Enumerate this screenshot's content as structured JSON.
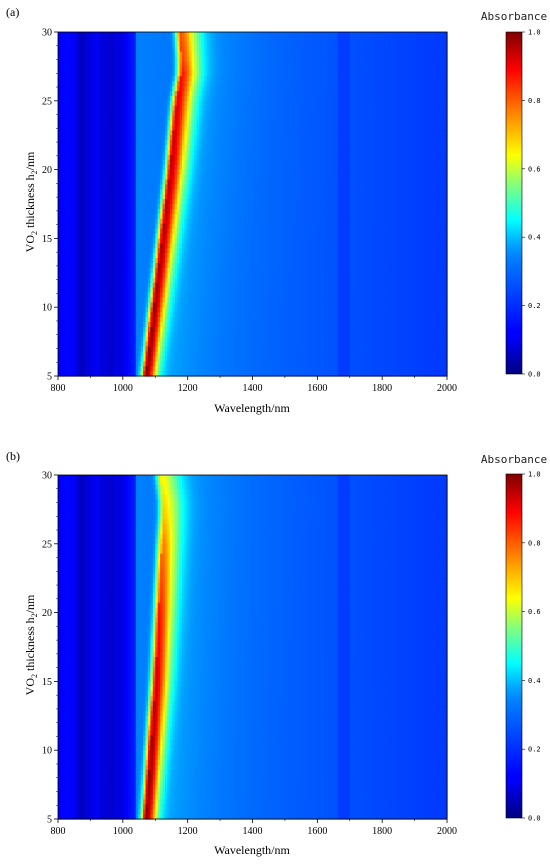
{
  "panels": [
    {
      "label": "(a)"
    },
    {
      "label": "(b)"
    }
  ],
  "colorbar": {
    "title": "Absorbance",
    "ticks": [
      "0.0",
      "0.2",
      "0.4",
      "0.6",
      "0.8",
      "1.0"
    ]
  },
  "chart_data": [
    {
      "type": "heatmap",
      "panel": "(a)",
      "xlabel": "Wavelength/nm",
      "ylabel": "VO2 thickness h2/nm",
      "xlim": [
        800,
        2000
      ],
      "ylim": [
        5,
        30
      ],
      "xticks": [
        800,
        1000,
        1200,
        1400,
        1600,
        1800,
        2000
      ],
      "yticks": [
        5,
        10,
        15,
        20,
        25,
        30
      ],
      "colorscale": "jet",
      "zlim": [
        0,
        1
      ],
      "peak_ridge": {
        "thickness": [
          5,
          10,
          15,
          20,
          25,
          27,
          28,
          30
        ],
        "wavelength": [
          1070,
          1095,
          1120,
          1145,
          1165,
          1180,
          1180,
          1175
        ],
        "peak_absorbance": [
          0.92,
          0.9,
          0.88,
          0.86,
          0.83,
          0.78,
          0.74,
          0.72
        ]
      }
    },
    {
      "type": "heatmap",
      "panel": "(b)",
      "xlabel": "Wavelength/nm",
      "ylabel": "VO2 thickness h2/nm",
      "xlim": [
        800,
        2000
      ],
      "ylim": [
        5,
        30
      ],
      "xticks": [
        800,
        1000,
        1200,
        1400,
        1600,
        1800,
        2000
      ],
      "yticks": [
        5,
        10,
        15,
        20,
        25,
        30
      ],
      "colorscale": "jet",
      "zlim": [
        0,
        1
      ],
      "peak_ridge": {
        "thickness": [
          5,
          10,
          15,
          20,
          25,
          27,
          28,
          30
        ],
        "wavelength": [
          1070,
          1085,
          1100,
          1110,
          1120,
          1125,
          1125,
          1115
        ],
        "peak_absorbance": [
          0.92,
          0.9,
          0.85,
          0.78,
          0.68,
          0.6,
          0.58,
          0.55
        ]
      }
    }
  ]
}
